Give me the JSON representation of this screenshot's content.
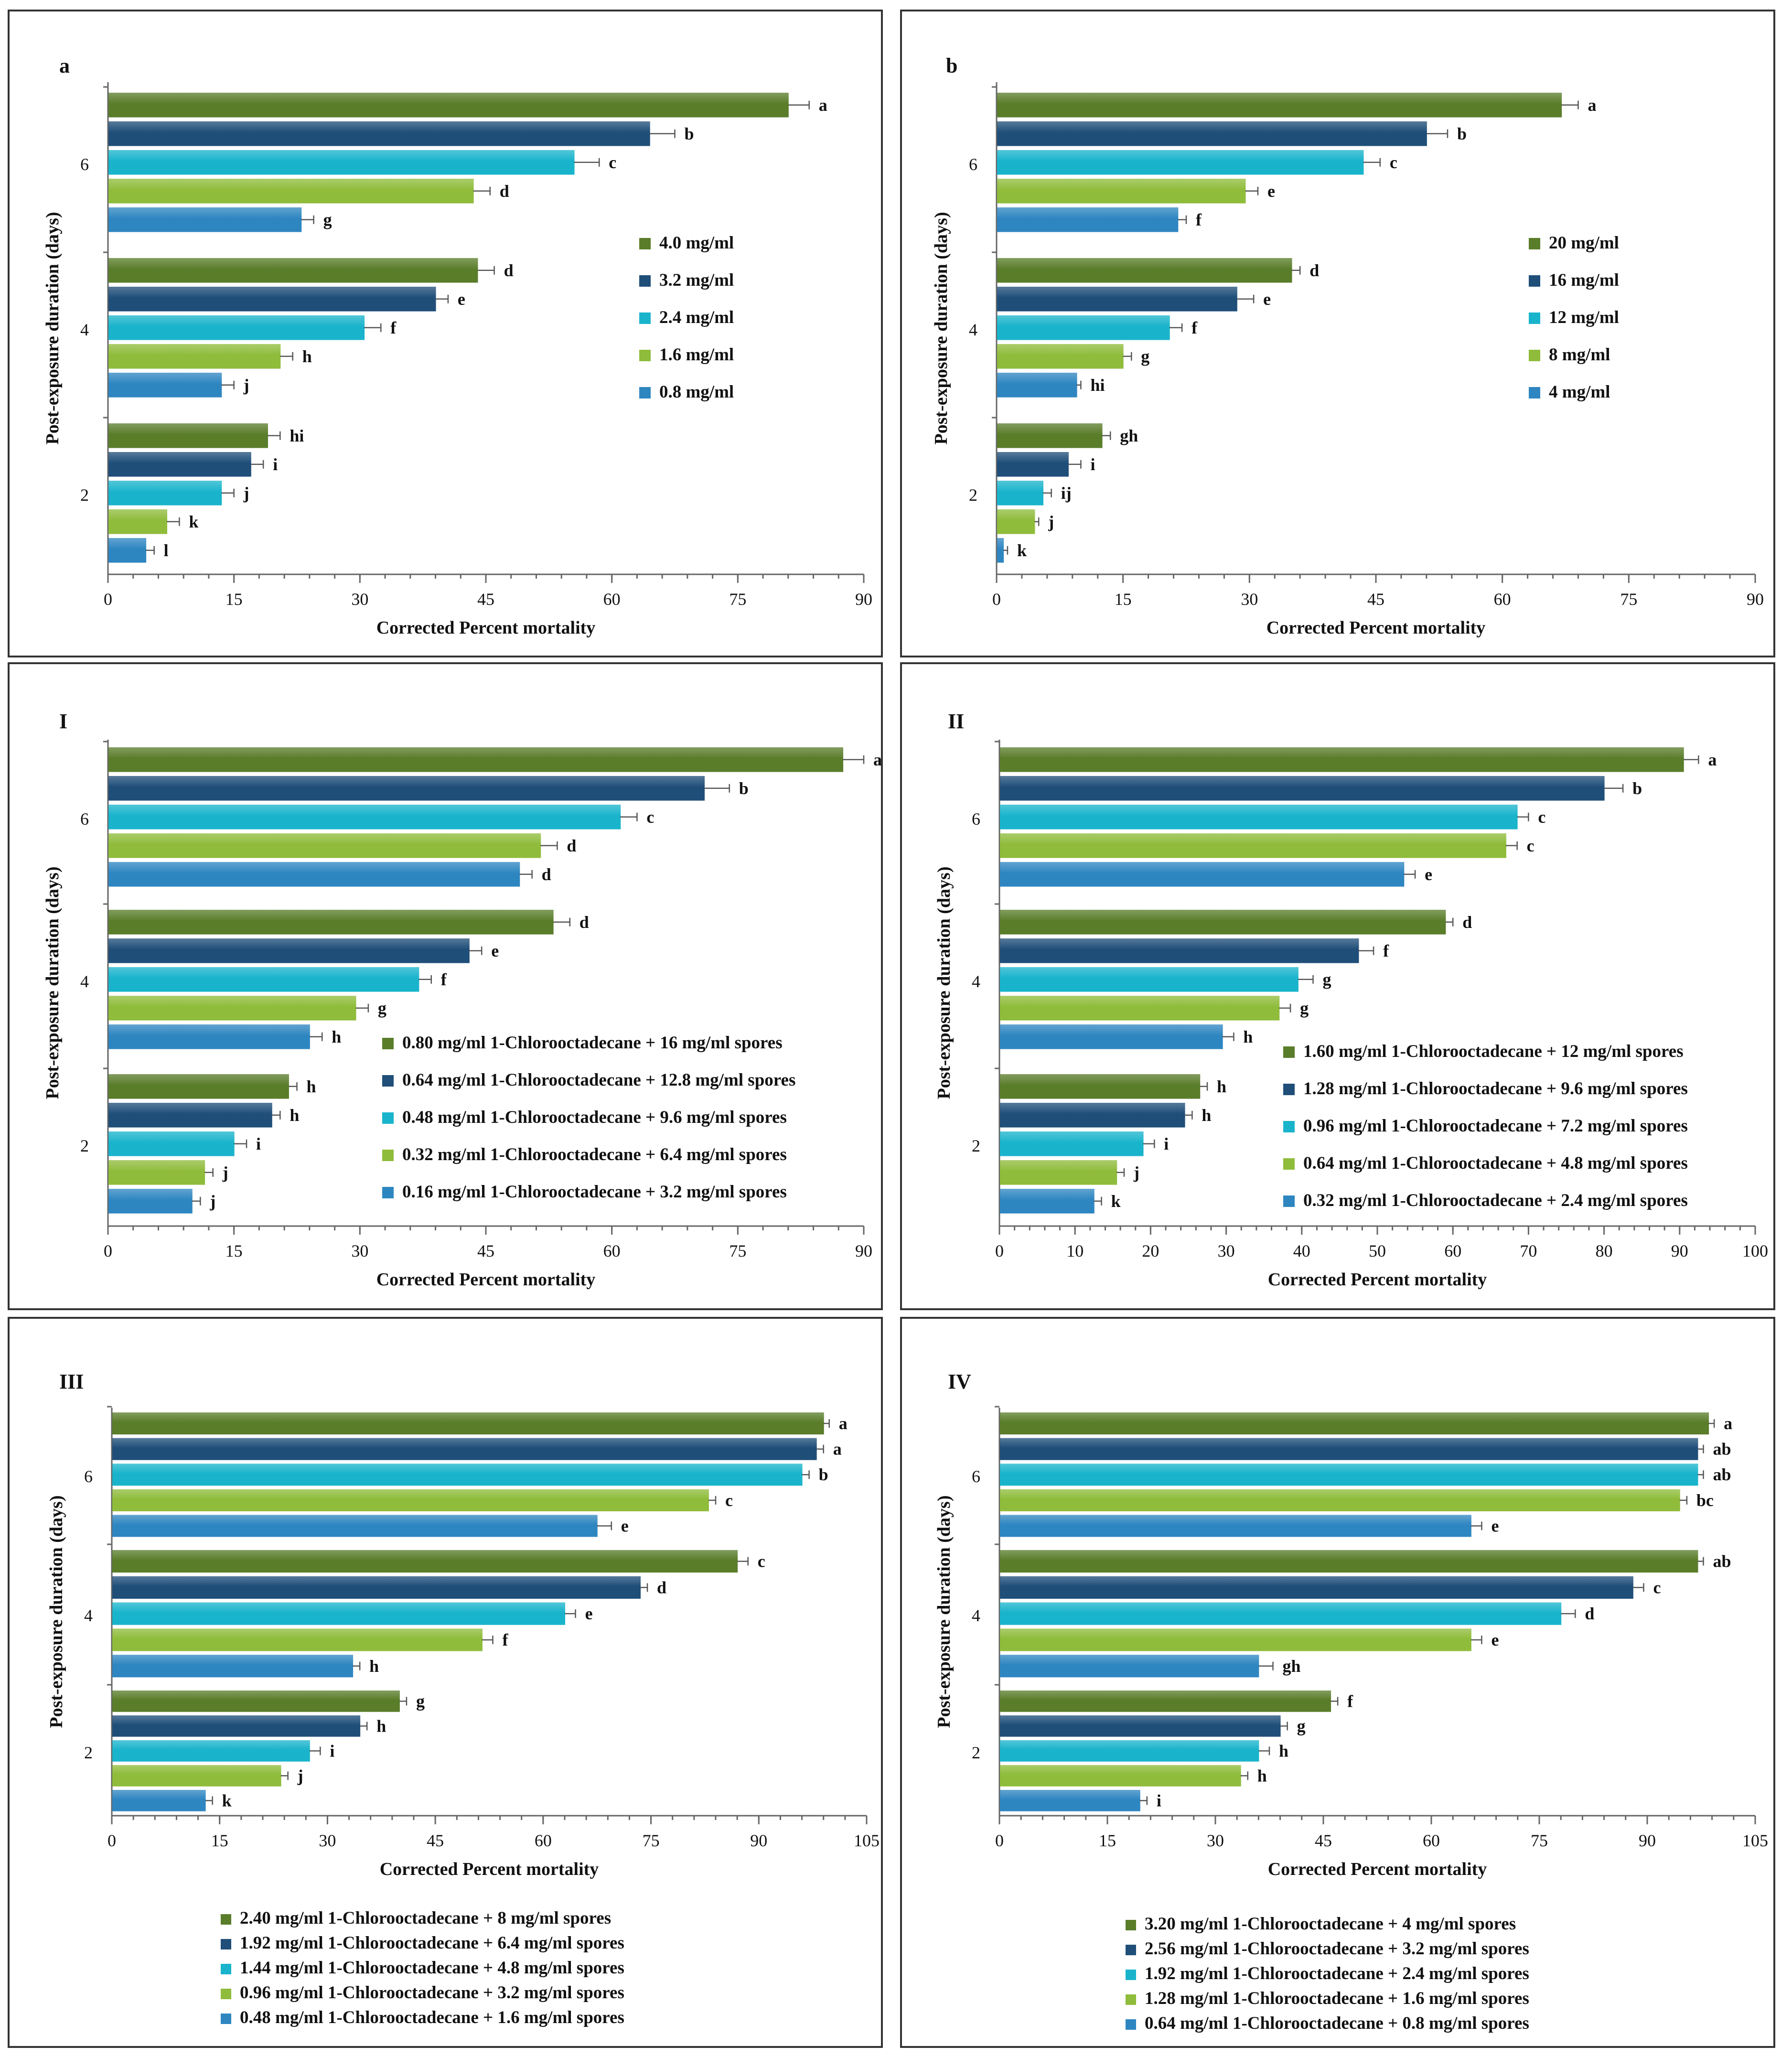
{
  "colors": {
    "s1": "#5a7d2a",
    "s2": "#1f4e79",
    "s3": "#19b4cc",
    "s4": "#8fbc3b",
    "s5": "#2e86c1"
  },
  "chart_data": [
    {
      "type": "bar",
      "orientation": "horizontal",
      "panel": "a",
      "xlabel": "Corrected Percent mortality",
      "ylabel": "Post-exposure duration (days)",
      "xlim": [
        0,
        90
      ],
      "xticks": [
        0,
        15,
        30,
        45,
        60,
        75,
        90
      ],
      "categories": [
        "6",
        "4",
        "2"
      ],
      "legend_position": "right-middle",
      "series": [
        {
          "name": "4.0 mg/ml",
          "values": [
            81,
            44,
            19
          ],
          "errors": [
            2.5,
            2,
            1.5
          ],
          "letters": [
            "a",
            "d",
            "hi"
          ]
        },
        {
          "name": "3.2 mg/ml",
          "values": [
            64.5,
            39,
            17
          ],
          "errors": [
            3,
            1.5,
            1.5
          ],
          "letters": [
            "b",
            "e",
            "i"
          ]
        },
        {
          "name": "2.4 mg/ml",
          "values": [
            55.5,
            30.5,
            13.5
          ],
          "errors": [
            3,
            2,
            1.5
          ],
          "letters": [
            "c",
            "f",
            "j"
          ]
        },
        {
          "name": "1.6 mg/ml",
          "values": [
            43.5,
            20.5,
            7
          ],
          "errors": [
            2,
            1.5,
            1.5
          ],
          "letters": [
            "d",
            "h",
            "k"
          ]
        },
        {
          "name": "0.8 mg/ml",
          "values": [
            23,
            13.5,
            4.5
          ],
          "errors": [
            1.5,
            1.5,
            1
          ],
          "letters": [
            "g",
            "j",
            "l"
          ]
        }
      ]
    },
    {
      "type": "bar",
      "orientation": "horizontal",
      "panel": "b",
      "xlabel": "Corrected Percent mortality",
      "ylabel": "Post-exposure duration (days)",
      "xlim": [
        0,
        90
      ],
      "xticks": [
        0,
        15,
        30,
        45,
        60,
        75,
        90
      ],
      "categories": [
        "6",
        "4",
        "2"
      ],
      "legend_position": "right-middle",
      "series": [
        {
          "name": "20 mg/ml",
          "values": [
            67,
            35,
            12.5
          ],
          "errors": [
            2,
            1,
            1
          ],
          "letters": [
            "a",
            "d",
            "gh"
          ]
        },
        {
          "name": "16 mg/ml",
          "values": [
            51,
            28.5,
            8.5
          ],
          "errors": [
            2.5,
            2,
            1.5
          ],
          "letters": [
            "b",
            "e",
            "i"
          ]
        },
        {
          "name": "12 mg/ml",
          "values": [
            43.5,
            20.5,
            5.5
          ],
          "errors": [
            2,
            1.5,
            1
          ],
          "letters": [
            "c",
            "f",
            "ij"
          ]
        },
        {
          "name": "8 mg/ml",
          "values": [
            29.5,
            15,
            4.5
          ],
          "errors": [
            1.5,
            1,
            0.5
          ],
          "letters": [
            "e",
            "g",
            "j"
          ]
        },
        {
          "name": "4 mg/ml",
          "values": [
            21.5,
            9.5,
            0.8
          ],
          "errors": [
            1,
            0.5,
            0.5
          ],
          "letters": [
            "f",
            "hi",
            "k"
          ]
        }
      ]
    },
    {
      "type": "bar",
      "orientation": "horizontal",
      "panel": "I",
      "xlabel": "Corrected Percent mortality",
      "ylabel": "Post-exposure duration (days)",
      "xlim": [
        0,
        90
      ],
      "xticks": [
        0,
        15,
        30,
        45,
        60,
        75,
        90
      ],
      "categories": [
        "6",
        "4",
        "2"
      ],
      "legend_position": "right-lower",
      "series": [
        {
          "name": "0.80 mg/ml 1-Chlorooctadecane + 16 mg/ml spores",
          "values": [
            87.5,
            53,
            21.5
          ],
          "errors": [
            2.5,
            2,
            1
          ],
          "letters": [
            "a",
            "d",
            "h"
          ]
        },
        {
          "name": "0.64 mg/ml 1-Chlorooctadecane + 12.8 mg/ml spores",
          "values": [
            71,
            43,
            19.5
          ],
          "errors": [
            3,
            1.5,
            1
          ],
          "letters": [
            "b",
            "e",
            "h"
          ]
        },
        {
          "name": "0.48 mg/ml 1-Chlorooctadecane + 9.6 mg/ml spores",
          "values": [
            61,
            37,
            15
          ],
          "errors": [
            2,
            1.5,
            1.5
          ],
          "letters": [
            "c",
            "f",
            "i"
          ]
        },
        {
          "name": "0.32 mg/ml 1-Chlorooctadecane + 6.4 mg/ml spores",
          "values": [
            51.5,
            29.5,
            11.5
          ],
          "errors": [
            2,
            1.5,
            1
          ],
          "letters": [
            "d",
            "g",
            "j"
          ]
        },
        {
          "name": "0.16 mg/ml 1-Chlorooctadecane + 3.2 mg/ml spores",
          "values": [
            49,
            24,
            10
          ],
          "errors": [
            1.5,
            1.5,
            1
          ],
          "letters": [
            "d",
            "h",
            "j"
          ]
        }
      ]
    },
    {
      "type": "bar",
      "orientation": "horizontal",
      "panel": "II",
      "xlabel": "Corrected Percent mortality",
      "ylabel": "Post-exposure duration (days)",
      "xlim": [
        0,
        100
      ],
      "xticks": [
        0,
        10,
        20,
        30,
        40,
        50,
        60,
        70,
        80,
        90,
        100
      ],
      "categories": [
        "6",
        "4",
        "2"
      ],
      "legend_position": "right-lower",
      "series": [
        {
          "name": "1.60 mg/ml 1-Chlorooctadecane + 12 mg/ml spores",
          "values": [
            90.5,
            59,
            26.5
          ],
          "errors": [
            2,
            1,
            1
          ],
          "letters": [
            "a",
            "d",
            "h"
          ]
        },
        {
          "name": "1.28 mg/ml 1-Chlorooctadecane + 9.6 mg/ml spores",
          "values": [
            80,
            47.5,
            24.5
          ],
          "errors": [
            2.5,
            2,
            1
          ],
          "letters": [
            "b",
            "f",
            "h"
          ]
        },
        {
          "name": "0.96 mg/ml 1-Chlorooctadecane + 7.2 mg/ml spores",
          "values": [
            68.5,
            39.5,
            19
          ],
          "errors": [
            1.5,
            2,
            1.5
          ],
          "letters": [
            "c",
            "g",
            "i"
          ]
        },
        {
          "name": "0.64 mg/ml 1-Chlorooctadecane + 4.8 mg/ml spores",
          "values": [
            67,
            37,
            15.5
          ],
          "errors": [
            1.5,
            1.5,
            1
          ],
          "letters": [
            "c",
            "g",
            "j"
          ]
        },
        {
          "name": "0.32 mg/ml 1-Chlorooctadecane + 2.4 mg/ml spores",
          "values": [
            53.5,
            29.5,
            12.5
          ],
          "errors": [
            1.5,
            1.5,
            1
          ],
          "letters": [
            "e",
            "h",
            "k"
          ]
        }
      ]
    },
    {
      "type": "bar",
      "orientation": "horizontal",
      "panel": "III",
      "xlabel": "Corrected Percent mortality",
      "ylabel": "Post-exposure duration (days)",
      "xlim": [
        0,
        105
      ],
      "xticks": [
        0,
        15,
        30,
        45,
        60,
        75,
        90,
        105
      ],
      "categories": [
        "6",
        "4",
        "2"
      ],
      "legend_position": "bottom",
      "series": [
        {
          "name": "2.40 mg/ml 1-Chlorooctadecane + 8 mg/ml spores",
          "values": [
            99,
            87,
            40
          ],
          "errors": [
            0.8,
            1.5,
            1
          ],
          "letters": [
            "a",
            "c",
            "g"
          ]
        },
        {
          "name": "1.92 mg/ml 1-Chlorooctadecane + 6.4 mg/ml spores",
          "values": [
            98,
            73.5,
            34.5
          ],
          "errors": [
            1,
            1,
            1
          ],
          "letters": [
            "a",
            "d",
            "h"
          ]
        },
        {
          "name": "1.44 mg/ml 1-Chlorooctadecane + 4.8 mg/ml spores",
          "values": [
            96,
            63,
            27.5
          ],
          "errors": [
            1,
            1.5,
            1.5
          ],
          "letters": [
            "b",
            "e",
            "i"
          ]
        },
        {
          "name": "0.96 mg/ml 1-Chlorooctadecane + 3.2 mg/ml spores",
          "values": [
            83,
            51.5,
            23.5
          ],
          "errors": [
            1,
            1.5,
            1
          ],
          "letters": [
            "c",
            "f",
            "j"
          ]
        },
        {
          "name": "0.48 mg/ml 1-Chlorooctadecane + 1.6 mg/ml spores",
          "values": [
            67.5,
            33.5,
            13
          ],
          "errors": [
            2,
            1,
            1
          ],
          "letters": [
            "e",
            "h",
            "k"
          ]
        }
      ]
    },
    {
      "type": "bar",
      "orientation": "horizontal",
      "panel": "IV",
      "xlabel": "Corrected Percent mortality",
      "ylabel": "Post-exposure duration (days)",
      "xlim": [
        0,
        105
      ],
      "xticks": [
        0,
        15,
        30,
        45,
        60,
        75,
        90,
        105
      ],
      "categories": [
        "6",
        "4",
        "2"
      ],
      "legend_position": "bottom",
      "series": [
        {
          "name": "3.20 mg/ml 1-Chlorooctadecane + 4 mg/ml spores",
          "values": [
            98.5,
            97,
            46
          ],
          "errors": [
            0.8,
            0.8,
            1
          ],
          "letters": [
            "a",
            "ab",
            "f"
          ]
        },
        {
          "name": "2.56 mg/ml 1-Chlorooctadecane + 3.2 mg/ml spores",
          "values": [
            97,
            88,
            39
          ],
          "errors": [
            0.8,
            1.5,
            1
          ],
          "letters": [
            "ab",
            "c",
            "g"
          ]
        },
        {
          "name": "1.92 mg/ml 1-Chlorooctadecane + 2.4 mg/ml spores",
          "values": [
            97,
            78,
            36
          ],
          "errors": [
            0.8,
            2,
            1.5
          ],
          "letters": [
            "ab",
            "d",
            "h"
          ]
        },
        {
          "name": "1.28 mg/ml 1-Chlorooctadecane + 1.6 mg/ml spores",
          "values": [
            94.5,
            65.5,
            33.5
          ],
          "errors": [
            1,
            1.5,
            1
          ],
          "letters": [
            "bc",
            "e",
            "h"
          ]
        },
        {
          "name": "0.64 mg/ml 1-Chlorooctadecane + 0.8 mg/ml spores",
          "values": [
            65.5,
            36,
            19.5
          ],
          "errors": [
            1.5,
            2,
            1
          ],
          "letters": [
            "e",
            "gh",
            "i"
          ]
        }
      ]
    }
  ]
}
